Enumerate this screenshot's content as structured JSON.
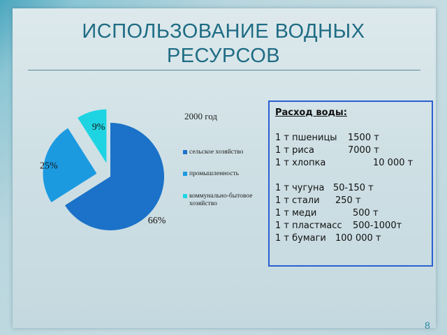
{
  "slide": {
    "title_line1": "ИСПОЛЬЗОВАНИЕ ВОДНЫХ",
    "title_line2": "РЕСУРСОВ",
    "page_number": "8"
  },
  "chart_data": {
    "type": "pie",
    "title": "2000 год",
    "categories": [
      "сельское хозяйство",
      "промышленность",
      "коммунально-бытовое хозяйство"
    ],
    "values": [
      66,
      25,
      9
    ],
    "value_labels": [
      "66%",
      "25%",
      "9%"
    ],
    "colors": [
      "#1b72c8",
      "#1c9ae0",
      "#1fd4e2"
    ],
    "exploded": [
      false,
      true,
      true
    ],
    "legend_position": "right"
  },
  "water_usage": {
    "heading": "Расход воды:",
    "group1": [
      {
        "item": "1 т пшеницы",
        "value": "1500 т"
      },
      {
        "item": "1 т риса",
        "value": "7000 т"
      },
      {
        "item": "1 т хлопка",
        "value": "10 000 т"
      }
    ],
    "group2": [
      {
        "item": "1 т чугуна",
        "value": "50-150 т"
      },
      {
        "item": "1 т стали",
        "value": "250 т"
      },
      {
        "item": "1 т меди",
        "value": "500 т"
      },
      {
        "item": "1 т пластмасс",
        "value": "500-1000т"
      },
      {
        "item": "1 т бумаги",
        "value": "100 000 т"
      }
    ]
  },
  "colors": {
    "title": "#1f6c84",
    "box_border": "#2a5fd0"
  }
}
